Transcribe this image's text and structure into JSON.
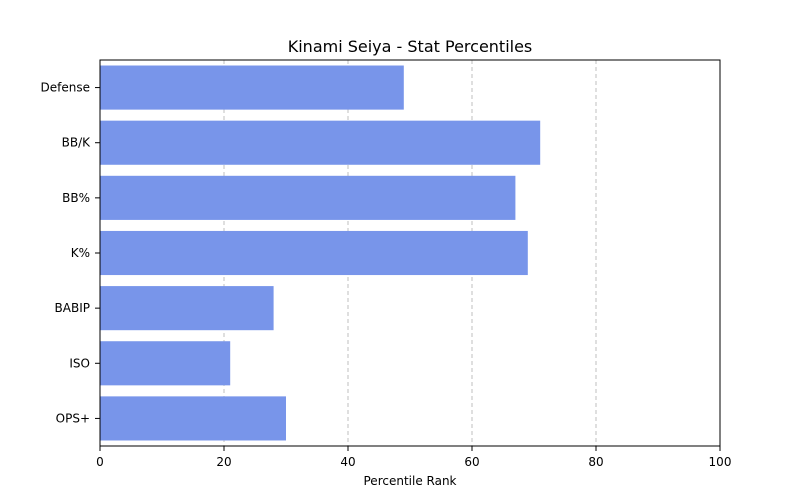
{
  "chart_data": {
    "type": "bar",
    "orientation": "horizontal",
    "title": "Kinami Seiya - Stat Percentiles",
    "xlabel": "Percentile Rank",
    "ylabel": "",
    "xlim": [
      0,
      100
    ],
    "xticks": [
      0,
      20,
      40,
      60,
      80,
      100
    ],
    "grid": "x-dashed",
    "bar_color": "#7895ea",
    "categories": [
      "Defense",
      "BB/K",
      "BB%",
      "K%",
      "BABIP",
      "ISO",
      "OPS+"
    ],
    "values": [
      49,
      71,
      67,
      69,
      28,
      21,
      30
    ]
  }
}
